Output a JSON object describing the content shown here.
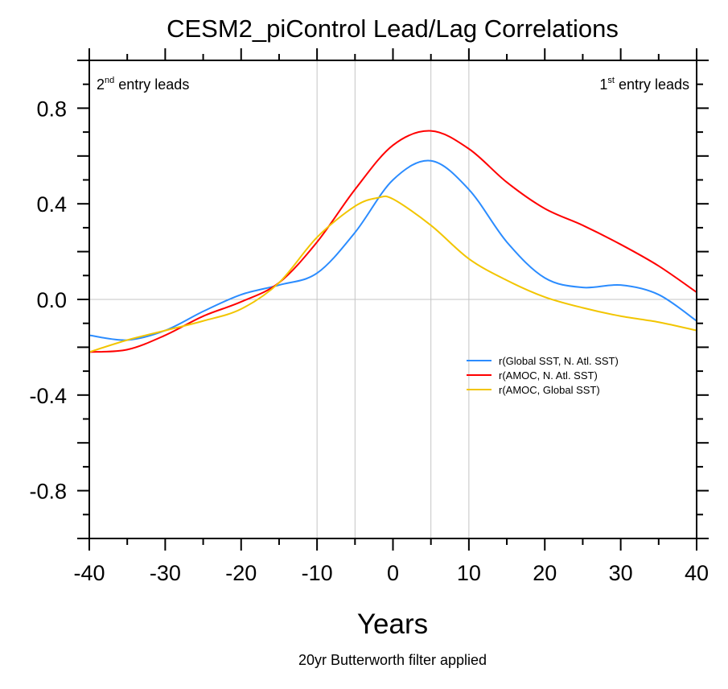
{
  "chart_data": {
    "type": "line",
    "title": "CESM2_piControl Lead/Lag Correlations",
    "xlabel": "Years",
    "subtitle": "20yr Butterworth filter applied",
    "annotations": {
      "left": {
        "num": "2",
        "sup": "nd",
        "text": " entry leads"
      },
      "right": {
        "num": "1",
        "sup": "st",
        "text": " entry leads"
      }
    },
    "xlim": [
      -40,
      40
    ],
    "ylim": [
      -1,
      1
    ],
    "xticks": [
      -40,
      -30,
      -20,
      -10,
      0,
      10,
      20,
      30,
      40
    ],
    "xtick_labels": [
      "-40",
      "-30",
      "-20",
      "-10",
      "0",
      "10",
      "20",
      "30",
      "40"
    ],
    "yticks": [
      -0.8,
      -0.4,
      0.0,
      0.4,
      0.8
    ],
    "ytick_labels": [
      "-0.8",
      "-0.4",
      "0.0",
      "0.4",
      "0.8"
    ],
    "vertical_reference_lines": [
      -10,
      -5,
      5,
      10
    ],
    "horizontal_reference_line": 0,
    "legend_placement": "center-right",
    "series": [
      {
        "name": "r(Global SST, N. Atl. SST)",
        "color": "#2b8cff",
        "x": [
          -40,
          -35,
          -30,
          -25,
          -20,
          -15,
          -10,
          -5,
          0,
          5,
          10,
          15,
          20,
          25,
          30,
          35,
          40
        ],
        "y": [
          -0.15,
          -0.17,
          -0.13,
          -0.05,
          0.02,
          0.06,
          0.11,
          0.28,
          0.5,
          0.58,
          0.46,
          0.24,
          0.09,
          0.05,
          0.06,
          0.02,
          -0.09
        ]
      },
      {
        "name": "r(AMOC, N. Atl. SST)",
        "color": "#ff0000",
        "x": [
          -40,
          -35,
          -30,
          -25,
          -20,
          -15,
          -10,
          -5,
          0,
          5,
          10,
          15,
          20,
          25,
          30,
          35,
          40
        ],
        "y": [
          -0.22,
          -0.21,
          -0.15,
          -0.07,
          -0.01,
          0.07,
          0.24,
          0.46,
          0.645,
          0.705,
          0.63,
          0.49,
          0.38,
          0.31,
          0.23,
          0.14,
          0.03
        ]
      },
      {
        "name": "r(AMOC, Global SST)",
        "color": "#f2c500",
        "x": [
          -40,
          -35,
          -30,
          -25,
          -20,
          -15,
          -10,
          -5,
          -2,
          0,
          5,
          10,
          15,
          20,
          25,
          30,
          35,
          40
        ],
        "y": [
          -0.22,
          -0.17,
          -0.13,
          -0.09,
          -0.04,
          0.07,
          0.26,
          0.39,
          0.425,
          0.42,
          0.31,
          0.17,
          0.08,
          0.01,
          -0.035,
          -0.07,
          -0.095,
          -0.13
        ]
      }
    ]
  }
}
